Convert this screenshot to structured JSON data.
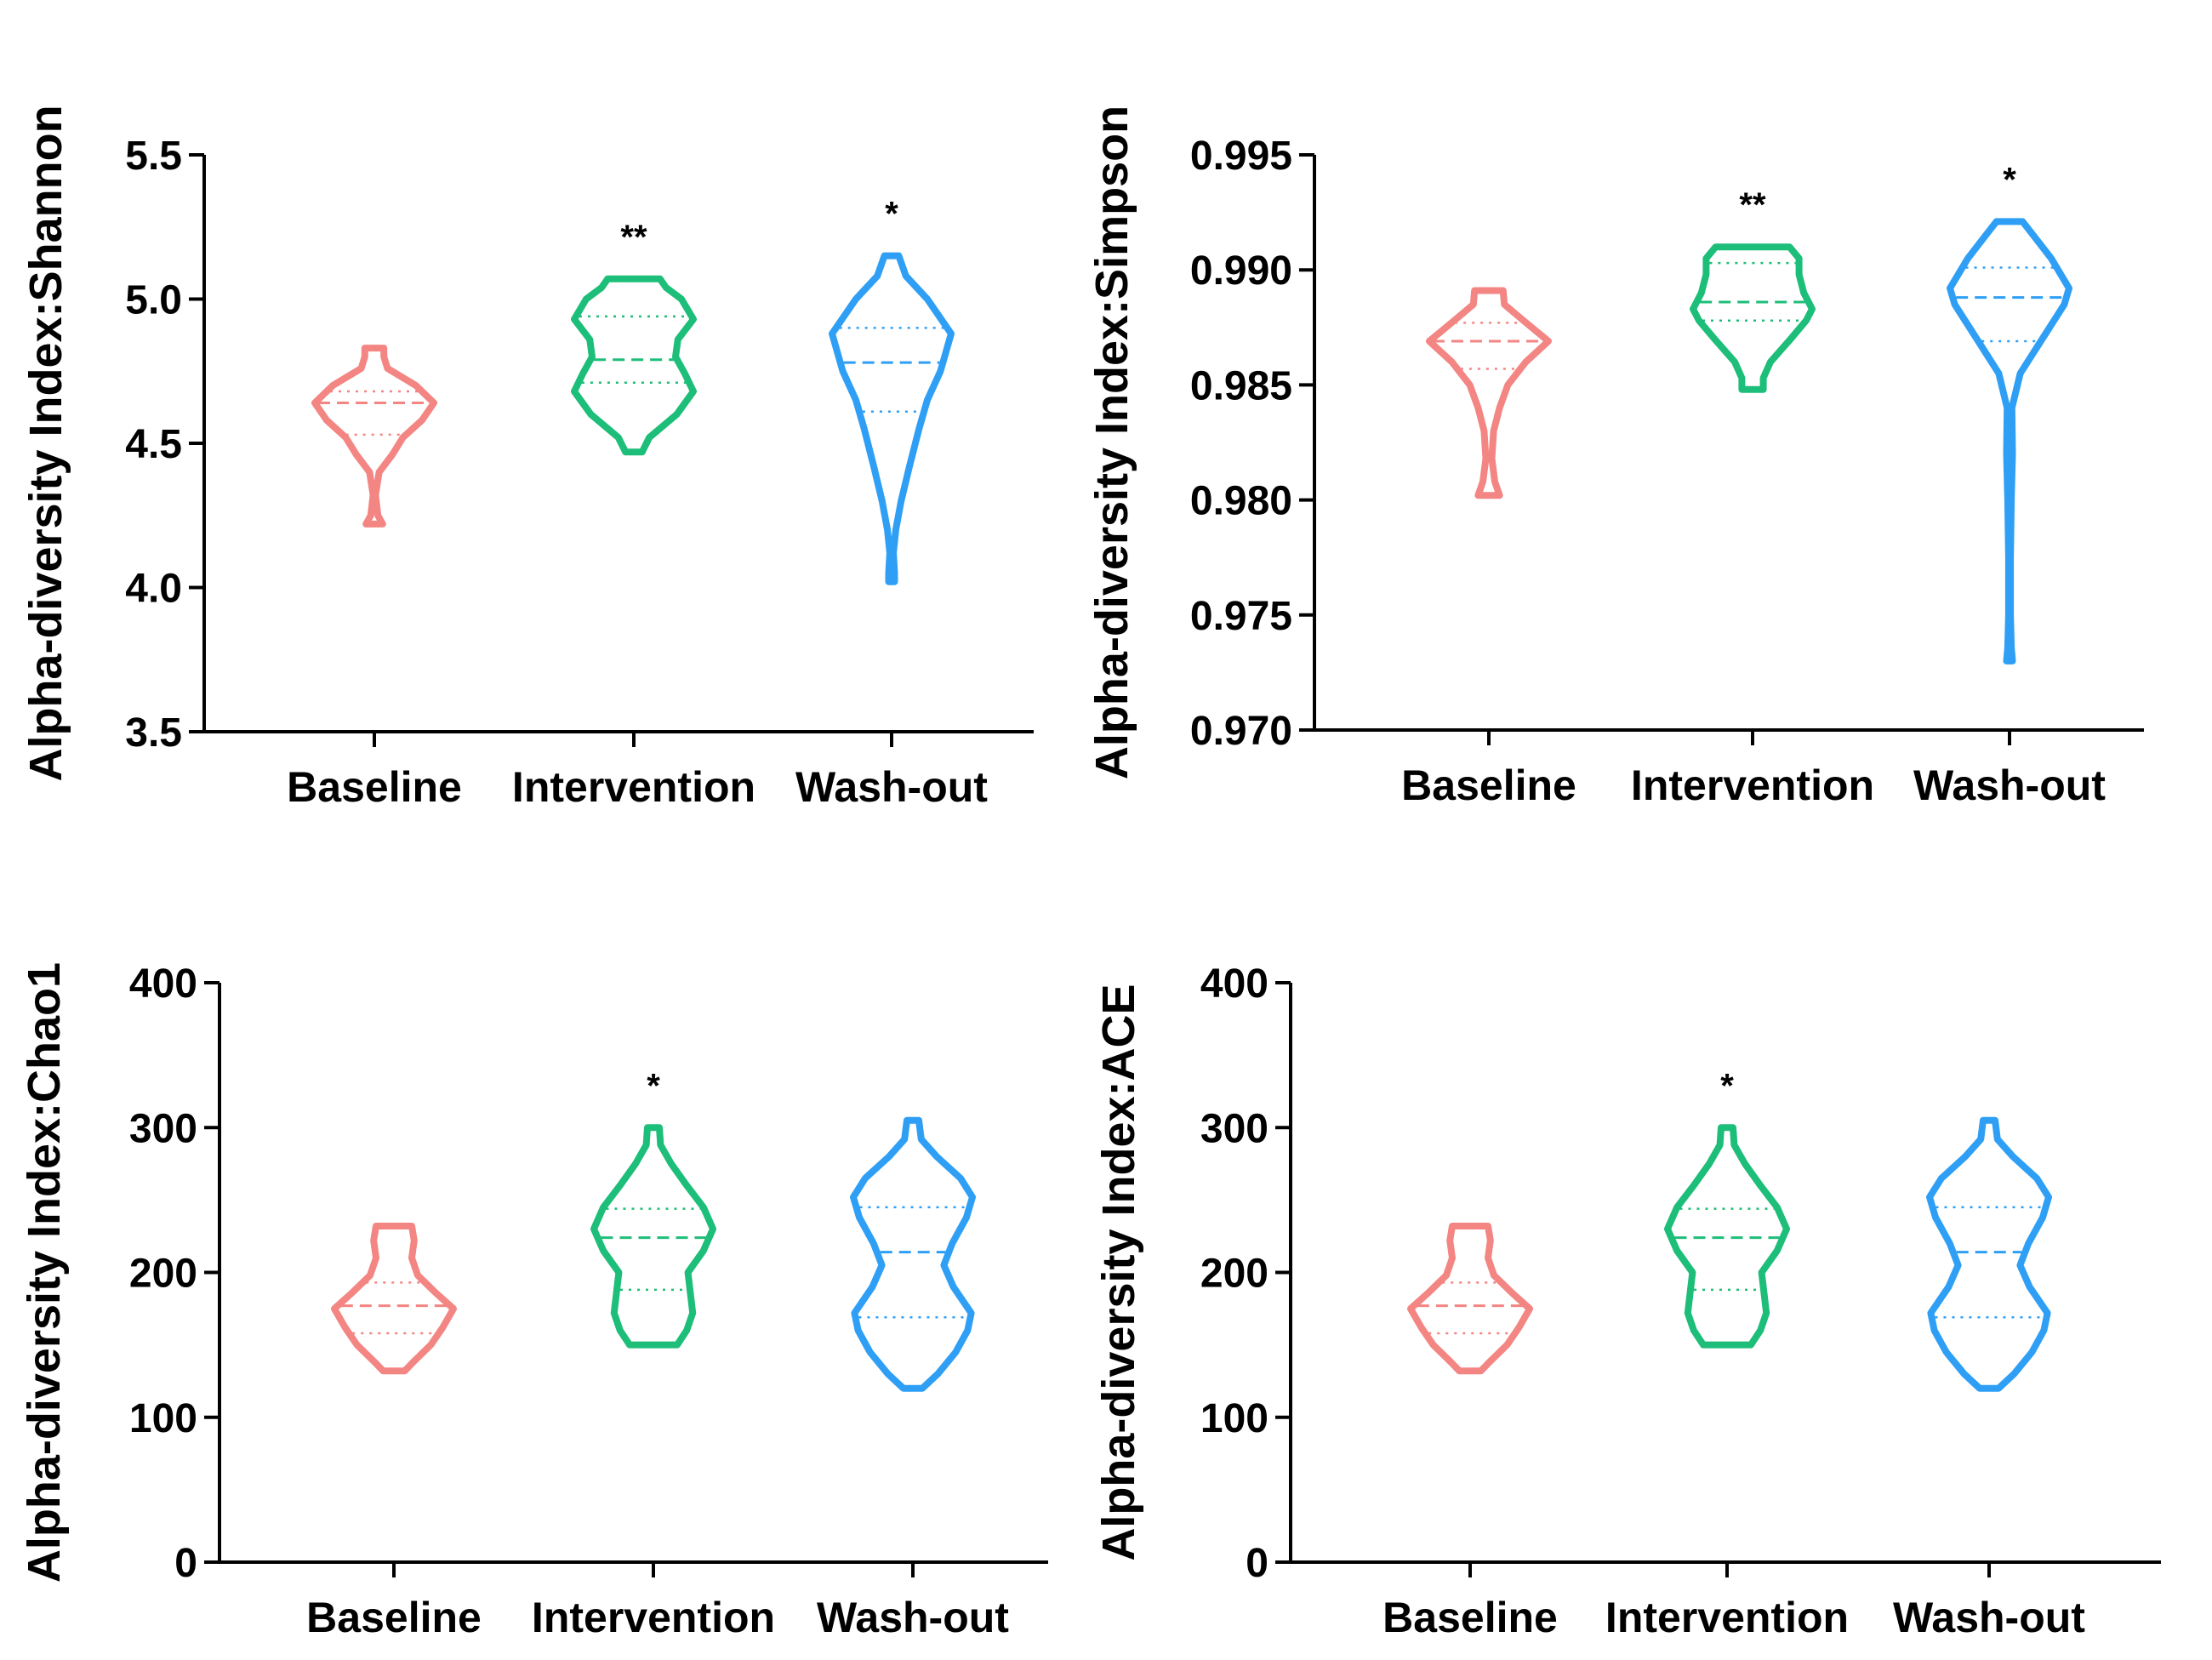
{
  "colors": {
    "Baseline": "#F38583",
    "Intervention": "#1DBE79",
    "Wash-out": "#2E9FF5",
    "axis": "#000000"
  },
  "chart_data": [
    {
      "type": "violin",
      "id": "shannon",
      "ylabel": "Alpha-diversity Index:Shannon",
      "ylim": [
        3.5,
        5.5
      ],
      "yticks": [
        "3.5",
        "4.0",
        "4.5",
        "5.0",
        "5.5"
      ],
      "categories": [
        "Baseline",
        "Intervention",
        "Wash-out"
      ],
      "series": [
        {
          "name": "Baseline",
          "median": 4.64,
          "q1": 4.53,
          "q3": 4.68,
          "min": 4.22,
          "max": 4.83,
          "significance": "",
          "profile": [
            [
              4.22,
              0.14
            ],
            [
              4.25,
              0.06
            ],
            [
              4.32,
              0.02
            ],
            [
              4.4,
              0.08
            ],
            [
              4.46,
              0.3
            ],
            [
              4.52,
              0.48
            ],
            [
              4.58,
              0.8
            ],
            [
              4.64,
              1.0
            ],
            [
              4.7,
              0.7
            ],
            [
              4.76,
              0.22
            ],
            [
              4.8,
              0.16
            ],
            [
              4.83,
              0.16
            ]
          ]
        },
        {
          "name": "Intervention",
          "median": 4.79,
          "q1": 4.71,
          "q3": 4.94,
          "min": 4.47,
          "max": 5.07,
          "significance": "**",
          "profile": [
            [
              4.47,
              0.14
            ],
            [
              4.52,
              0.26
            ],
            [
              4.6,
              0.72
            ],
            [
              4.68,
              1.0
            ],
            [
              4.74,
              0.86
            ],
            [
              4.8,
              0.7
            ],
            [
              4.86,
              0.74
            ],
            [
              4.93,
              1.0
            ],
            [
              5.0,
              0.8
            ],
            [
              5.04,
              0.54
            ],
            [
              5.07,
              0.44
            ]
          ]
        },
        {
          "name": "Wash-out",
          "median": 4.78,
          "q1": 4.61,
          "q3": 4.9,
          "min": 4.02,
          "max": 5.15,
          "significance": "*",
          "profile": [
            [
              4.02,
              0.05
            ],
            [
              4.05,
              0.05
            ],
            [
              4.12,
              0.03
            ],
            [
              4.2,
              0.07
            ],
            [
              4.3,
              0.16
            ],
            [
              4.42,
              0.3
            ],
            [
              4.55,
              0.46
            ],
            [
              4.65,
              0.6
            ],
            [
              4.75,
              0.82
            ],
            [
              4.88,
              1.0
            ],
            [
              5.0,
              0.6
            ],
            [
              5.08,
              0.24
            ],
            [
              5.15,
              0.12
            ]
          ]
        }
      ]
    },
    {
      "type": "violin",
      "id": "simpson",
      "ylabel": "Alpha-diversity Index:Simpson",
      "ylim": [
        0.97,
        0.995
      ],
      "yticks": [
        "0.970",
        "0.975",
        "0.980",
        "0.985",
        "0.990",
        "0.995"
      ],
      "categories": [
        "Baseline",
        "Intervention",
        "Wash-out"
      ],
      "series": [
        {
          "name": "Baseline",
          "median": 0.9869,
          "q1": 0.9857,
          "q3": 0.9877,
          "min": 0.9802,
          "max": 0.9891,
          "significance": "",
          "profile": [
            [
              0.9802,
              0.18
            ],
            [
              0.9808,
              0.1
            ],
            [
              0.9818,
              0.05
            ],
            [
              0.983,
              0.08
            ],
            [
              0.984,
              0.18
            ],
            [
              0.985,
              0.32
            ],
            [
              0.986,
              0.62
            ],
            [
              0.9869,
              1.0
            ],
            [
              0.9878,
              0.58
            ],
            [
              0.9885,
              0.26
            ],
            [
              0.9891,
              0.24
            ]
          ]
        },
        {
          "name": "Intervention",
          "median": 0.9886,
          "q1": 0.9878,
          "q3": 0.9903,
          "min": 0.9848,
          "max": 0.991,
          "significance": "**",
          "profile": [
            [
              0.9848,
              0.18
            ],
            [
              0.9853,
              0.18
            ],
            [
              0.986,
              0.3
            ],
            [
              0.987,
              0.64
            ],
            [
              0.9878,
              0.9
            ],
            [
              0.9883,
              1.0
            ],
            [
              0.989,
              0.86
            ],
            [
              0.9898,
              0.78
            ],
            [
              0.9905,
              0.78
            ],
            [
              0.991,
              0.62
            ]
          ]
        },
        {
          "name": "Wash-out",
          "median": 0.9888,
          "q1": 0.9869,
          "q3": 0.9901,
          "min": 0.973,
          "max": 0.9921,
          "significance": "*",
          "profile": [
            [
              0.973,
              0.05
            ],
            [
              0.9736,
              0.03
            ],
            [
              0.975,
              0.015
            ],
            [
              0.9775,
              0.015
            ],
            [
              0.98,
              0.03
            ],
            [
              0.982,
              0.05
            ],
            [
              0.984,
              0.04
            ],
            [
              0.9855,
              0.18
            ],
            [
              0.987,
              0.55
            ],
            [
              0.9885,
              0.92
            ],
            [
              0.9892,
              1.0
            ],
            [
              0.9905,
              0.7
            ],
            [
              0.9915,
              0.4
            ],
            [
              0.9921,
              0.22
            ]
          ]
        }
      ]
    },
    {
      "type": "violin",
      "id": "chao1",
      "ylabel": "Alpha-diversity Index:Chao1",
      "ylim": [
        0,
        400
      ],
      "yticks": [
        "0",
        "100",
        "200",
        "300",
        "400"
      ],
      "categories": [
        "Baseline",
        "Intervention",
        "Wash-out"
      ],
      "series": [
        {
          "name": "Baseline",
          "median": 177,
          "q1": 158,
          "q3": 193,
          "min": 132,
          "max": 232,
          "significance": "",
          "profile": [
            [
              132,
              0.18
            ],
            [
              138,
              0.32
            ],
            [
              150,
              0.62
            ],
            [
              162,
              0.82
            ],
            [
              175,
              1.0
            ],
            [
              186,
              0.7
            ],
            [
              198,
              0.4
            ],
            [
              210,
              0.3
            ],
            [
              222,
              0.34
            ],
            [
              232,
              0.3
            ]
          ]
        },
        {
          "name": "Intervention",
          "median": 224,
          "q1": 188,
          "q3": 244,
          "min": 150,
          "max": 300,
          "significance": "*",
          "profile": [
            [
              150,
              0.4
            ],
            [
              160,
              0.56
            ],
            [
              172,
              0.66
            ],
            [
              186,
              0.62
            ],
            [
              200,
              0.58
            ],
            [
              215,
              0.84
            ],
            [
              230,
              1.0
            ],
            [
              245,
              0.84
            ],
            [
              260,
              0.56
            ],
            [
              275,
              0.3
            ],
            [
              288,
              0.12
            ],
            [
              300,
              0.1
            ]
          ]
        },
        {
          "name": "Wash-out",
          "median": 214,
          "q1": 169,
          "q3": 245,
          "min": 120,
          "max": 305,
          "significance": "",
          "profile": [
            [
              120,
              0.16
            ],
            [
              130,
              0.42
            ],
            [
              145,
              0.72
            ],
            [
              160,
              0.92
            ],
            [
              172,
              0.98
            ],
            [
              190,
              0.68
            ],
            [
              205,
              0.52
            ],
            [
              220,
              0.66
            ],
            [
              238,
              0.9
            ],
            [
              252,
              1.0
            ],
            [
              265,
              0.8
            ],
            [
              280,
              0.4
            ],
            [
              292,
              0.14
            ],
            [
              305,
              0.1
            ]
          ]
        }
      ]
    },
    {
      "type": "violin",
      "id": "ace",
      "ylabel": "Alpha-diversity Index:ACE",
      "ylim": [
        0,
        400
      ],
      "yticks": [
        "0",
        "100",
        "200",
        "300",
        "400"
      ],
      "categories": [
        "Baseline",
        "Intervention",
        "Wash-out"
      ],
      "series": [
        {
          "name": "Baseline",
          "median": 177,
          "q1": 158,
          "q3": 193,
          "min": 132,
          "max": 232,
          "significance": "",
          "profile": [
            [
              132,
              0.18
            ],
            [
              138,
              0.32
            ],
            [
              150,
              0.62
            ],
            [
              162,
              0.82
            ],
            [
              175,
              1.0
            ],
            [
              186,
              0.7
            ],
            [
              198,
              0.4
            ],
            [
              210,
              0.3
            ],
            [
              222,
              0.34
            ],
            [
              232,
              0.3
            ]
          ]
        },
        {
          "name": "Intervention",
          "median": 224,
          "q1": 188,
          "q3": 244,
          "min": 150,
          "max": 300,
          "significance": "*",
          "profile": [
            [
              150,
              0.4
            ],
            [
              160,
              0.56
            ],
            [
              172,
              0.66
            ],
            [
              186,
              0.62
            ],
            [
              200,
              0.58
            ],
            [
              215,
              0.84
            ],
            [
              230,
              1.0
            ],
            [
              245,
              0.84
            ],
            [
              260,
              0.56
            ],
            [
              275,
              0.3
            ],
            [
              288,
              0.12
            ],
            [
              300,
              0.1
            ]
          ]
        },
        {
          "name": "Wash-out",
          "median": 214,
          "q1": 169,
          "q3": 245,
          "min": 120,
          "max": 305,
          "significance": "",
          "profile": [
            [
              120,
              0.16
            ],
            [
              130,
              0.42
            ],
            [
              145,
              0.72
            ],
            [
              160,
              0.92
            ],
            [
              172,
              0.98
            ],
            [
              190,
              0.68
            ],
            [
              205,
              0.52
            ],
            [
              220,
              0.66
            ],
            [
              238,
              0.9
            ],
            [
              252,
              1.0
            ],
            [
              265,
              0.8
            ],
            [
              280,
              0.4
            ],
            [
              292,
              0.14
            ],
            [
              305,
              0.1
            ]
          ]
        }
      ]
    }
  ]
}
